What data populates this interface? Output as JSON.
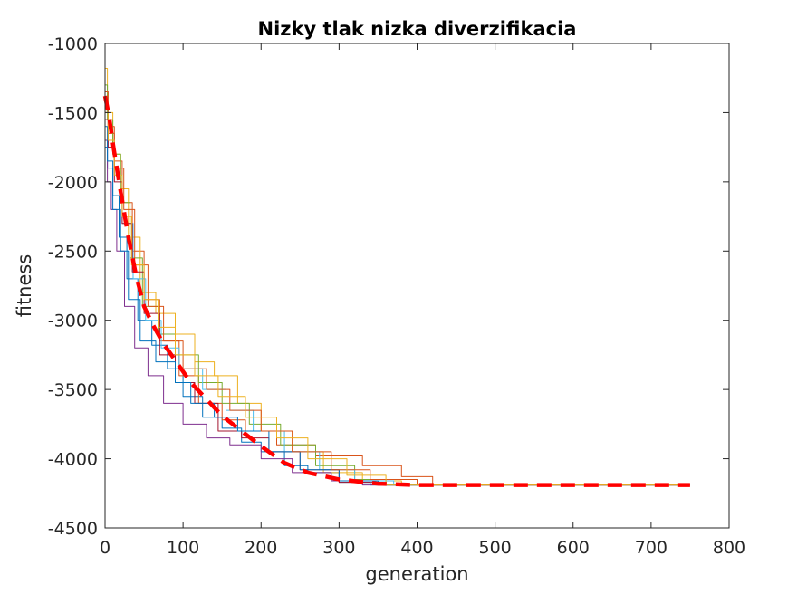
{
  "chart_data": {
    "type": "line",
    "title": "Nizky tlak nizka diverzifikacia",
    "xlabel": "generation",
    "ylabel": "fitness",
    "xlim": [
      0,
      800
    ],
    "ylim": [
      -4500,
      -1000
    ],
    "xticks": [
      0,
      100,
      200,
      300,
      400,
      500,
      600,
      700,
      800
    ],
    "yticks": [
      -4500,
      -4000,
      -3500,
      -3000,
      -2500,
      -2000,
      -1500,
      -1000
    ],
    "xtick_labels": [
      "0",
      "100",
      "200",
      "300",
      "400",
      "500",
      "600",
      "700",
      "800"
    ],
    "ytick_labels": [
      "-4500",
      "-4000",
      "-3500",
      "-3000",
      "-2500",
      "-2000",
      "-1500",
      "-1000"
    ],
    "grid": false,
    "series": [
      {
        "color": "#0072BD",
        "x": [
          0,
          3,
          10,
          18,
          28,
          42,
          60,
          80,
          100,
          125,
          150,
          175,
          200,
          230,
          260,
          300,
          340
        ],
        "y": [
          -1750,
          -1900,
          -2100,
          -2400,
          -2700,
          -3000,
          -3180,
          -3350,
          -3550,
          -3700,
          -3780,
          -3880,
          -3950,
          -4050,
          -4100,
          -4170,
          -4190
        ]
      },
      {
        "color": "#D95319",
        "x": [
          0,
          4,
          12,
          22,
          35,
          50,
          70,
          95,
          120,
          150,
          180,
          220,
          270,
          330,
          380,
          420
        ],
        "y": [
          -1500,
          -1650,
          -1850,
          -2150,
          -2500,
          -2850,
          -3150,
          -3400,
          -3600,
          -3720,
          -3800,
          -3900,
          -3980,
          -4050,
          -4130,
          -4190
        ]
      },
      {
        "color": "#EDB120",
        "x": [
          0,
          3,
          10,
          20,
          30,
          45,
          65,
          90,
          115,
          140,
          170,
          200,
          240,
          280,
          330,
          380,
          750
        ],
        "y": [
          -1180,
          -1500,
          -1800,
          -2050,
          -2400,
          -2800,
          -2950,
          -3100,
          -3300,
          -3400,
          -3600,
          -3800,
          -3950,
          -4100,
          -4160,
          -4190,
          -4190
        ]
      },
      {
        "color": "#7E2F8E",
        "x": [
          0,
          3,
          8,
          15,
          25,
          38,
          55,
          75,
          100,
          130,
          160,
          200,
          240,
          290,
          330
        ],
        "y": [
          -1700,
          -2000,
          -2200,
          -2500,
          -2900,
          -3200,
          -3400,
          -3600,
          -3750,
          -3850,
          -3900,
          -4000,
          -4100,
          -4160,
          -4190
        ]
      },
      {
        "color": "#77AC30",
        "x": [
          0,
          3,
          10,
          20,
          32,
          48,
          68,
          90,
          120,
          150,
          185,
          225,
          270,
          320,
          360
        ],
        "y": [
          -1300,
          -1550,
          -1800,
          -2150,
          -2550,
          -2900,
          -3100,
          -3250,
          -3450,
          -3600,
          -3750,
          -3900,
          -4050,
          -4150,
          -4190
        ]
      },
      {
        "color": "#4DBEEE",
        "x": [
          0,
          4,
          12,
          22,
          36,
          52,
          72,
          95,
          125,
          155,
          190,
          230,
          275,
          320,
          370
        ],
        "y": [
          -1450,
          -1700,
          -1950,
          -2300,
          -2700,
          -3000,
          -3200,
          -3350,
          -3500,
          -3650,
          -3800,
          -3950,
          -4080,
          -4160,
          -4190
        ]
      },
      {
        "color": "#A2142F",
        "x": [
          0,
          4,
          12,
          22,
          35,
          50,
          70,
          90,
          115,
          145,
          175,
          210,
          250,
          300,
          350
        ],
        "y": [
          -1550,
          -1750,
          -2000,
          -2300,
          -2650,
          -2950,
          -3250,
          -3450,
          -3600,
          -3800,
          -3850,
          -3950,
          -4080,
          -4170,
          -4190
        ]
      },
      {
        "color": "#0072BD",
        "x": [
          0,
          3,
          10,
          20,
          30,
          45,
          65,
          90,
          110,
          140,
          170,
          210,
          250,
          300,
          350
        ],
        "y": [
          -1600,
          -1850,
          -2200,
          -2500,
          -2850,
          -3150,
          -3300,
          -3450,
          -3600,
          -3700,
          -3800,
          -3950,
          -4080,
          -4160,
          -4190
        ]
      },
      {
        "color": "#D95319",
        "x": [
          0,
          4,
          12,
          24,
          38,
          55,
          75,
          100,
          130,
          160,
          200,
          240,
          290,
          340,
          400
        ],
        "y": [
          -1350,
          -1600,
          -1900,
          -2200,
          -2600,
          -2900,
          -3150,
          -3350,
          -3500,
          -3650,
          -3800,
          -3950,
          -4080,
          -4150,
          -4190
        ]
      },
      {
        "color": "#EDB120",
        "x": [
          0,
          4,
          12,
          22,
          34,
          50,
          68,
          90,
          115,
          145,
          180,
          220,
          260,
          310,
          360
        ],
        "y": [
          -1500,
          -1700,
          -1950,
          -2250,
          -2600,
          -2850,
          -3050,
          -3250,
          -3400,
          -3550,
          -3700,
          -3850,
          -4000,
          -4120,
          -4190
        ]
      },
      {
        "color": "#FF0000",
        "dashed": true,
        "x": [
          0,
          5,
          10,
          20,
          30,
          40,
          50,
          60,
          75,
          90,
          110,
          130,
          150,
          175,
          200,
          230,
          260,
          300,
          350,
          400,
          450,
          500,
          600,
          700,
          750
        ],
        "y": [
          -1380,
          -1520,
          -1720,
          -2070,
          -2400,
          -2680,
          -2900,
          -3020,
          -3170,
          -3290,
          -3450,
          -3570,
          -3690,
          -3800,
          -3910,
          -4030,
          -4100,
          -4150,
          -4180,
          -4190,
          -4190,
          -4190,
          -4190,
          -4190,
          -4190
        ]
      }
    ]
  }
}
